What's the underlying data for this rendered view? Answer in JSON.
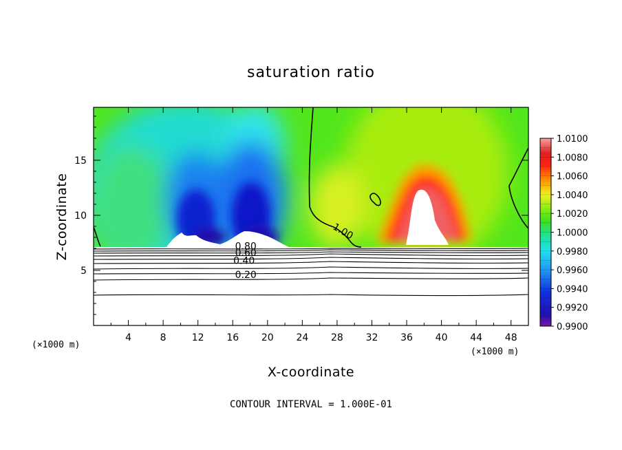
{
  "chart_data": {
    "type": "heatmap",
    "title": "saturation ratio",
    "xlabel": "X-coordinate",
    "ylabel": "Z-coordinate",
    "x_unit": "(×1000 m)",
    "z_unit": "(×1000 m)",
    "xlim": [
      0,
      50
    ],
    "ylim": [
      0,
      19.8
    ],
    "x_ticks": [
      4,
      8,
      12,
      16,
      20,
      24,
      28,
      32,
      36,
      40,
      44,
      48
    ],
    "y_ticks": [
      5,
      10,
      15
    ],
    "colorbar": {
      "min": 0.99,
      "max": 1.01,
      "labels": [
        "1.0100",
        "1.0080",
        "1.0060",
        "1.0040",
        "1.0020",
        "1.0000",
        "0.9980",
        "0.9960",
        "0.9940",
        "0.9920",
        "0.9900"
      ]
    },
    "contour_labels": [
      {
        "text": "1.00",
        "x": 28.5,
        "z": 8.3
      },
      {
        "text": "0.80",
        "x": 17.5,
        "z": 6.9
      },
      {
        "text": "0.60",
        "x": 17.5,
        "z": 6.3
      },
      {
        "text": "0.40",
        "x": 17.3,
        "z": 5.6
      },
      {
        "text": "0.20",
        "x": 17.5,
        "z": 4.3
      }
    ],
    "footer": "CONTOUR INTERVAL = 1.000E-01"
  }
}
